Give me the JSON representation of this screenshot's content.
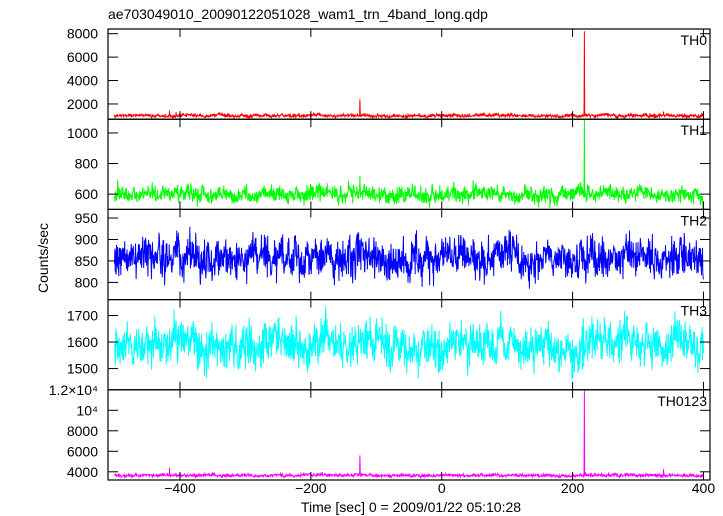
{
  "chart_data": {
    "type": "line",
    "title": "ae703049010_20090122051028_wam1_trn_4band_long.qdp",
    "xlabel": "Time [sec] 0 = 2009/01/22 05:10:28",
    "ylabel": "Counts/sec",
    "xlim": [
      -510,
      410
    ],
    "x_ticks": [
      -400,
      -200,
      0,
      200,
      400
    ],
    "x_tick_labels": [
      "−400",
      "−200",
      "0",
      "200",
      "400"
    ],
    "grid": false,
    "panels": [
      {
        "name": "TH0",
        "color": "#ff0000",
        "ylim": [
          700,
          8400
        ],
        "y_ticks": [
          2000,
          4000,
          6000,
          8000
        ],
        "y_tick_labels": [
          "2000",
          "4000",
          "6000",
          "8000"
        ],
        "baseline": 1000,
        "noise": 120,
        "x_range": [
          -500,
          400
        ],
        "spikes": [
          {
            "x": 218,
            "y": 8200
          },
          {
            "x": -125,
            "y": 2400
          },
          {
            "x": -416,
            "y": 1450
          },
          {
            "x": -406,
            "y": 1300
          },
          {
            "x": 339,
            "y": 1350
          }
        ]
      },
      {
        "name": "TH1",
        "color": "#00ff00",
        "ylim": [
          500,
          1090
        ],
        "y_ticks": [
          600,
          800,
          1000
        ],
        "y_tick_labels": [
          "600",
          "800",
          "1000"
        ],
        "baseline": 600,
        "noise": 45,
        "x_range": [
          -500,
          400
        ],
        "spikes": [
          {
            "x": 218,
            "y": 1090
          },
          {
            "x": -125,
            "y": 720
          }
        ]
      },
      {
        "name": "TH2",
        "color": "#0000ff",
        "ylim": [
          760,
          970
        ],
        "y_ticks": [
          800,
          850,
          900,
          950
        ],
        "y_tick_labels": [
          "800",
          "850",
          "900",
          "950"
        ],
        "baseline": 855,
        "noise": 38,
        "x_range": [
          -500,
          400
        ],
        "spikes": []
      },
      {
        "name": "TH3",
        "color": "#00ffff",
        "ylim": [
          1420,
          1760
        ],
        "y_ticks": [
          1500,
          1600,
          1700
        ],
        "y_tick_labels": [
          "1500",
          "1600",
          "1700"
        ],
        "baseline": 1590,
        "noise": 65,
        "x_range": [
          -500,
          400
        ],
        "spikes": []
      },
      {
        "name": "TH0123",
        "color": "#ff00ff",
        "ylim": [
          3200,
          12000
        ],
        "y_ticks": [
          4000,
          6000,
          8000,
          10000
        ],
        "y_tick_labels": [
          "4000",
          "6000",
          "8000",
          "10⁴"
        ],
        "top_label": "1.2×10⁴",
        "baseline": 3650,
        "noise": 130,
        "x_range": [
          -500,
          400
        ],
        "spikes": [
          {
            "x": 218,
            "y": 12000
          },
          {
            "x": -125,
            "y": 5600
          },
          {
            "x": -416,
            "y": 4400
          },
          {
            "x": 339,
            "y": 4250
          }
        ]
      }
    ]
  }
}
